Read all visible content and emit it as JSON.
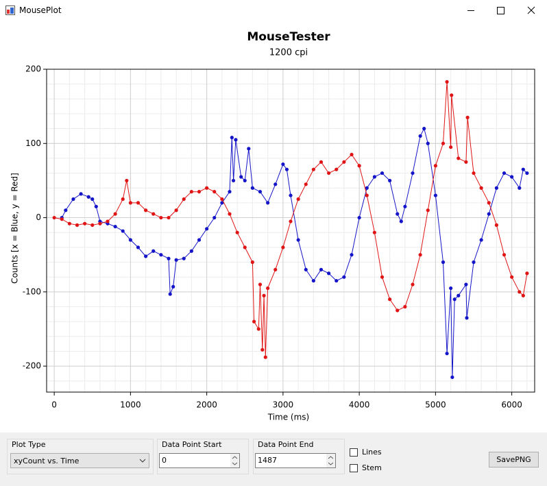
{
  "window": {
    "title": "MousePlot"
  },
  "chart_data": {
    "type": "scatter",
    "title": "MouseTester",
    "subtitle": "1200 cpi",
    "x_label": "Time (ms)",
    "y_label": "Counts [x = Blue, y = Red]",
    "xlim": [
      -100,
      6300
    ],
    "ylim": [
      -235,
      200
    ],
    "xticks": [
      0,
      1000,
      2000,
      3000,
      4000,
      5000,
      6000
    ],
    "yticks": [
      -200,
      -100,
      0,
      100,
      200
    ],
    "grid": true,
    "series": [
      {
        "color": "#1414c8",
        "x": [
          100,
          150,
          250,
          350,
          450,
          500,
          550,
          600,
          700,
          800,
          900,
          1000,
          1100,
          1200,
          1300,
          1400,
          1500,
          1520,
          1560,
          1600,
          1700,
          1800,
          1900,
          2000,
          2100,
          2200,
          2300,
          2330,
          2350,
          2380,
          2450,
          2500,
          2550,
          2600,
          2700,
          2800,
          2900,
          3000,
          3050,
          3100,
          3200,
          3300,
          3400,
          3500,
          3600,
          3700,
          3800,
          3900,
          4000,
          4100,
          4200,
          4300,
          4400,
          4500,
          4550,
          4600,
          4700,
          4800,
          4850,
          4900,
          5000,
          5100,
          5150,
          5200,
          5220,
          5250,
          5300,
          5400,
          5410,
          5500,
          5600,
          5700,
          5800,
          5900,
          6000,
          6100,
          6150,
          6200
        ],
        "values": [
          0,
          10,
          25,
          32,
          28,
          25,
          15,
          -5,
          -8,
          -12,
          -18,
          -30,
          -40,
          -52,
          -45,
          -50,
          -55,
          -103,
          -93,
          -57,
          -55,
          -45,
          -30,
          -15,
          0,
          20,
          35,
          108,
          50,
          105,
          55,
          50,
          93,
          40,
          35,
          20,
          45,
          72,
          65,
          30,
          -30,
          -70,
          -85,
          -70,
          -75,
          -85,
          -80,
          -50,
          0,
          40,
          55,
          60,
          50,
          5,
          -5,
          15,
          60,
          110,
          120,
          100,
          30,
          -60,
          -183,
          -95,
          -215,
          -110,
          -105,
          -90,
          -135,
          -60,
          -30,
          5,
          40,
          60,
          55,
          40,
          65,
          60
        ]
      },
      {
        "color": "#e01414",
        "x": [
          0,
          100,
          200,
          300,
          400,
          500,
          600,
          700,
          800,
          900,
          950,
          1000,
          1100,
          1200,
          1300,
          1400,
          1500,
          1600,
          1700,
          1800,
          1900,
          2000,
          2100,
          2200,
          2300,
          2400,
          2500,
          2600,
          2620,
          2680,
          2700,
          2730,
          2750,
          2770,
          2800,
          2900,
          3000,
          3100,
          3200,
          3300,
          3400,
          3500,
          3600,
          3700,
          3800,
          3900,
          4000,
          4100,
          4200,
          4300,
          4400,
          4500,
          4600,
          4700,
          4800,
          4900,
          5000,
          5100,
          5150,
          5200,
          5210,
          5300,
          5400,
          5420,
          5500,
          5600,
          5700,
          5800,
          5900,
          6000,
          6100,
          6150,
          6200
        ],
        "values": [
          0,
          -2,
          -8,
          -10,
          -8,
          -10,
          -8,
          -5,
          5,
          25,
          50,
          20,
          20,
          10,
          5,
          0,
          0,
          10,
          25,
          35,
          35,
          40,
          35,
          25,
          5,
          -20,
          -40,
          -60,
          -140,
          -150,
          -90,
          -178,
          -105,
          -188,
          -95,
          -70,
          -40,
          -5,
          25,
          45,
          65,
          75,
          60,
          65,
          75,
          85,
          70,
          30,
          -20,
          -80,
          -110,
          -125,
          -120,
          -90,
          -50,
          10,
          70,
          100,
          183,
          95,
          165,
          80,
          75,
          135,
          60,
          40,
          20,
          -10,
          -50,
          -80,
          -100,
          -105,
          -75
        ]
      }
    ]
  },
  "controls": {
    "plot_type": {
      "label": "Plot Type",
      "value": "xyCount vs. Time"
    },
    "start": {
      "label": "Data Point Start",
      "value": 0
    },
    "end": {
      "label": "Data Point End",
      "value": 1487
    },
    "lines": {
      "label": "Lines",
      "checked": false
    },
    "stem": {
      "label": "Stem",
      "checked": false
    },
    "save": {
      "label": "SavePNG"
    }
  }
}
